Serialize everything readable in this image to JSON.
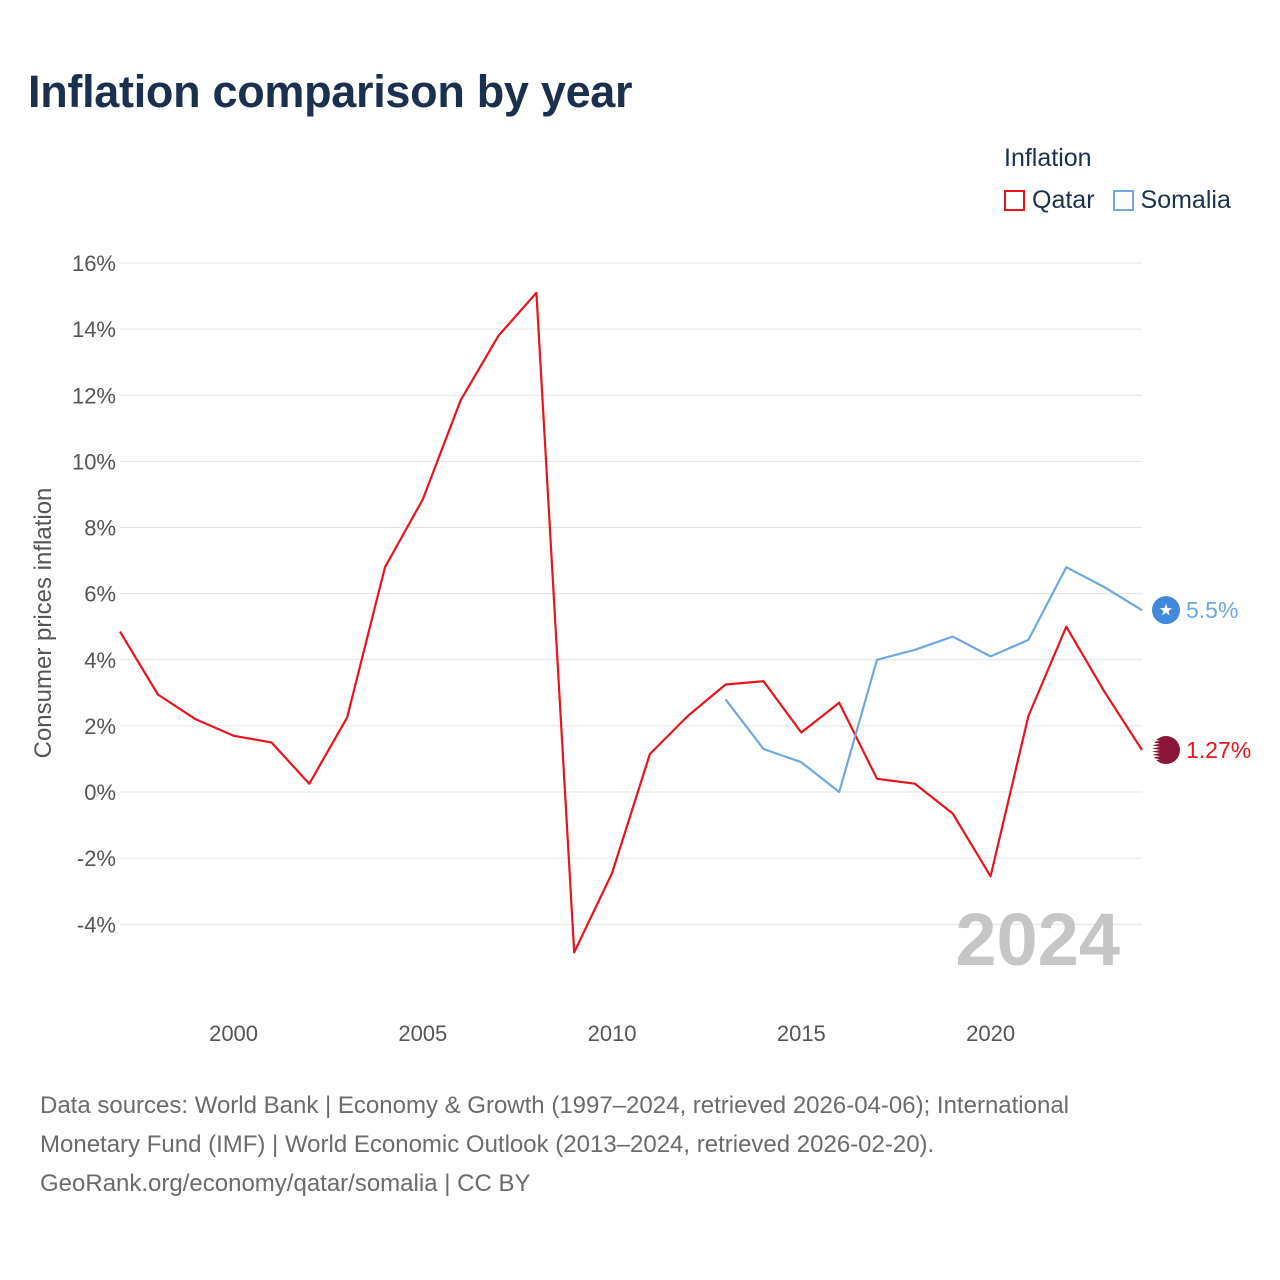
{
  "title": "Inflation comparison by year",
  "legend": {
    "title": "Inflation",
    "items": [
      {
        "name": "Qatar",
        "color": "#e8141b"
      },
      {
        "name": "Somalia",
        "color": "#6fa8e0"
      }
    ]
  },
  "current_year": "2024",
  "footer": {
    "line1": "Data sources: World Bank | Economy & Growth (1997–2024, retrieved 2026-04-06); International",
    "line2": "Monetary Fund (IMF) | World Economic Outlook (2013–2024, retrieved 2026-02-20).",
    "line3": "GeoRank.org/economy/qatar/somalia | CC BY"
  },
  "chart_data": {
    "type": "line",
    "title": "Inflation comparison by year",
    "xlabel": "",
    "ylabel": "Consumer prices inflation",
    "xlim": [
      1997,
      2024
    ],
    "ylim": [
      -6,
      16
    ],
    "x_ticks": [
      2000,
      2005,
      2010,
      2015,
      2020
    ],
    "y_ticks": [
      -4,
      -2,
      0,
      2,
      4,
      6,
      8,
      10,
      12,
      14,
      16
    ],
    "y_tick_labels": [
      "-4%",
      "-2%",
      "0%",
      "2%",
      "4%",
      "6%",
      "8%",
      "10%",
      "12%",
      "14%",
      "16%"
    ],
    "grid": true,
    "legend_position": "top-right",
    "series": [
      {
        "name": "Qatar",
        "color": "#e8141b",
        "end_label": "1.27%",
        "marker": "qatar-flag",
        "x": [
          1997,
          1998,
          1999,
          2000,
          2001,
          2002,
          2003,
          2004,
          2005,
          2006,
          2007,
          2008,
          2009,
          2010,
          2011,
          2012,
          2013,
          2014,
          2015,
          2016,
          2017,
          2018,
          2019,
          2020,
          2021,
          2022,
          2023,
          2024
        ],
        "values": [
          4.85,
          2.95,
          2.2,
          1.7,
          1.5,
          0.25,
          2.25,
          6.8,
          8.85,
          11.85,
          13.8,
          15.1,
          -4.85,
          -2.45,
          1.15,
          2.3,
          3.25,
          3.35,
          1.8,
          2.7,
          0.4,
          0.25,
          -0.65,
          -2.55,
          2.3,
          5.0,
          3.05,
          1.27
        ]
      },
      {
        "name": "Somalia",
        "color": "#6fa8e0",
        "end_label": "5.5%",
        "marker": "somalia-flag",
        "x": [
          2013,
          2014,
          2015,
          2016,
          2017,
          2018,
          2019,
          2020,
          2021,
          2022,
          2023,
          2024
        ],
        "values": [
          2.8,
          1.3,
          0.9,
          0.0,
          4.0,
          4.3,
          4.7,
          4.1,
          4.6,
          6.8,
          6.2,
          5.5
        ]
      }
    ]
  }
}
